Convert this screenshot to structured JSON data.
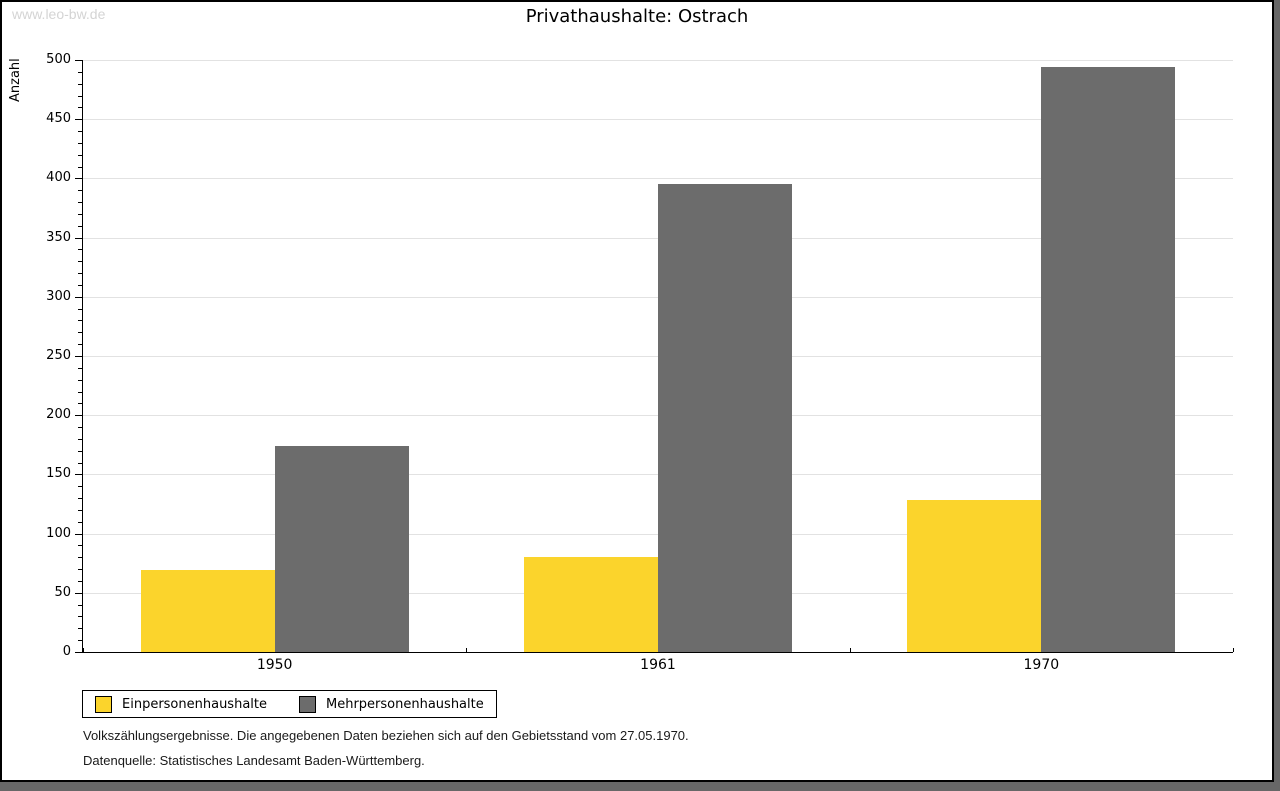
{
  "watermark": "www.leo-bw.de",
  "chart_data": {
    "type": "bar",
    "title": "Privathaushalte: Ostrach",
    "ylabel": "Anzahl",
    "xlabel": "",
    "categories": [
      "1950",
      "1961",
      "1970"
    ],
    "series": [
      {
        "name": "Einpersonenhaushalte",
        "color": "#FBD42C",
        "values": [
          69,
          80,
          128
        ]
      },
      {
        "name": "Mehrpersonenhaushalte",
        "color": "#6C6C6C",
        "values": [
          174,
          395,
          494
        ]
      }
    ],
    "ylim": [
      0,
      500
    ],
    "ytick_major": 50,
    "ytick_minor": 10,
    "grid": true,
    "gridline_color": "#e2e2e2",
    "legend_position": "bottom-left"
  },
  "footnotes": {
    "line1": "Volkszählungsergebnisse. Die angegebenen Daten beziehen sich auf den Gebietsstand vom 27.05.1970.",
    "line2": "Datenquelle: Statistisches Landesamt Baden-Württemberg."
  }
}
